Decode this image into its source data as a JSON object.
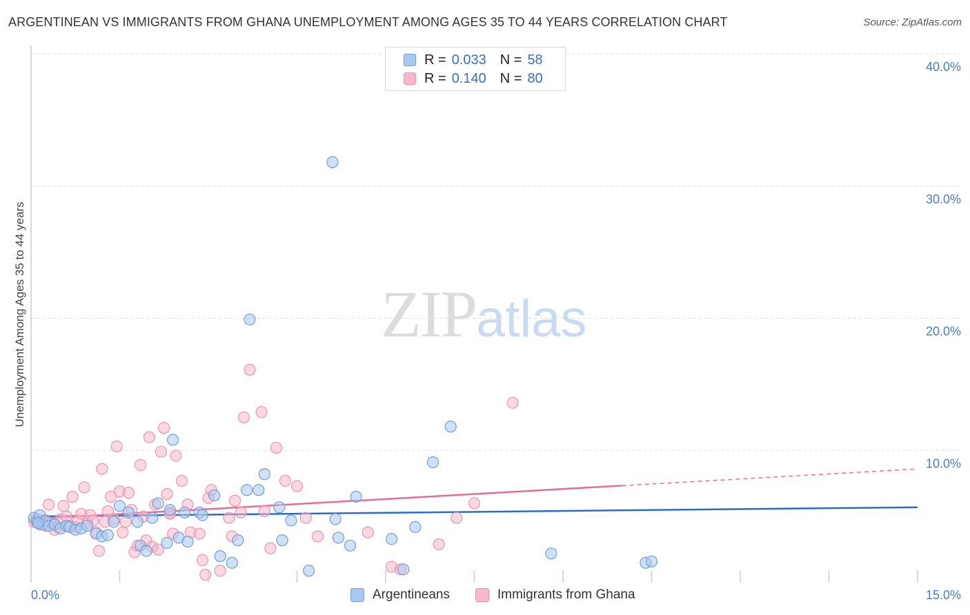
{
  "title": "ARGENTINEAN VS IMMIGRANTS FROM GHANA UNEMPLOYMENT AMONG AGES 35 TO 44 YEARS CORRELATION CHART",
  "source": "Source: ZipAtlas.com",
  "watermark": {
    "zip": "ZIP",
    "atlas": "atlas"
  },
  "legend": {
    "rows": [
      {
        "r_label": "R =",
        "r_value": "0.033",
        "n_label": "N =",
        "n_value": "58"
      },
      {
        "r_label": "R =",
        "r_value": "0.140",
        "n_label": "N =",
        "n_value": "80"
      }
    ]
  },
  "bottom_legend": [
    "Argentineans",
    "Immigrants from Ghana"
  ],
  "colors": {
    "argentineans_fill": "#a9c8f0",
    "argentineans_stroke": "#6f9fd8",
    "argentineans_line": "#2b6cc4",
    "ghana_fill": "#f7b8cb",
    "ghana_stroke": "#ee93ae",
    "ghana_line": "#e66c96",
    "tick_text": "#4a7cc7",
    "grid": "#dddddd"
  },
  "chart_data": {
    "type": "scatter",
    "title": "ARGENTINEAN VS IMMIGRANTS FROM GHANA UNEMPLOYMENT AMONG AGES 35 TO 44 YEARS CORRELATION CHART",
    "xlabel": "",
    "ylabel": "Unemployment Among Ages 35 to 44 years",
    "xlim": [
      0,
      15
    ],
    "ylim": [
      0,
      40
    ],
    "x_tick_labels": [
      "0.0%",
      "15.0%"
    ],
    "y_ticks": [
      10,
      20,
      30,
      40
    ],
    "y_tick_labels": [
      "10.0%",
      "20.0%",
      "30.0%",
      "40.0%"
    ],
    "grid": true,
    "series": [
      {
        "name": "Argentineans",
        "r": 0.033,
        "n": 58,
        "trend": {
          "x": [
            0,
            15
          ],
          "y": [
            5.0,
            5.7
          ],
          "dashed_from": null
        },
        "points": [
          [
            0.05,
            4.9
          ],
          [
            0.1,
            4.6
          ],
          [
            0.15,
            5.1
          ],
          [
            0.2,
            4.4
          ],
          [
            0.25,
            4.7
          ],
          [
            0.3,
            4.3
          ],
          [
            0.4,
            4.4
          ],
          [
            0.5,
            4.1
          ],
          [
            0.6,
            4.3
          ],
          [
            0.65,
            4.2
          ],
          [
            0.75,
            4.0
          ],
          [
            0.85,
            4.1
          ],
          [
            0.95,
            4.3
          ],
          [
            1.1,
            3.7
          ],
          [
            1.2,
            3.5
          ],
          [
            1.3,
            3.6
          ],
          [
            1.4,
            4.6
          ],
          [
            1.5,
            5.8
          ],
          [
            1.65,
            5.3
          ],
          [
            1.8,
            4.6
          ],
          [
            1.85,
            2.8
          ],
          [
            1.95,
            2.4
          ],
          [
            2.05,
            4.9
          ],
          [
            2.15,
            6.0
          ],
          [
            2.3,
            3.0
          ],
          [
            2.35,
            5.5
          ],
          [
            2.4,
            10.8
          ],
          [
            2.5,
            3.4
          ],
          [
            2.6,
            5.3
          ],
          [
            2.65,
            3.1
          ],
          [
            2.85,
            5.3
          ],
          [
            2.9,
            5.1
          ],
          [
            3.1,
            6.6
          ],
          [
            3.2,
            2.0
          ],
          [
            3.4,
            1.5
          ],
          [
            3.5,
            3.2
          ],
          [
            3.65,
            7.0
          ],
          [
            3.7,
            19.9
          ],
          [
            3.85,
            7.0
          ],
          [
            3.95,
            8.2
          ],
          [
            4.2,
            5.7
          ],
          [
            4.25,
            3.2
          ],
          [
            4.4,
            4.7
          ],
          [
            4.7,
            0.9
          ],
          [
            5.1,
            31.8
          ],
          [
            5.15,
            4.8
          ],
          [
            5.2,
            3.4
          ],
          [
            5.4,
            2.8
          ],
          [
            5.5,
            6.5
          ],
          [
            6.1,
            3.3
          ],
          [
            6.3,
            1.0
          ],
          [
            6.5,
            4.2
          ],
          [
            6.8,
            9.1
          ],
          [
            7.1,
            11.8
          ],
          [
            8.8,
            2.2
          ],
          [
            10.4,
            1.5
          ],
          [
            10.5,
            1.6
          ],
          [
            0.12,
            4.5
          ]
        ]
      },
      {
        "name": "Immigrants from Ghana",
        "r": 0.14,
        "n": 80,
        "trend": {
          "x": [
            0,
            15
          ],
          "y": [
            4.8,
            8.6
          ],
          "dashed_from": 10.0
        },
        "points": [
          [
            0.05,
            4.6
          ],
          [
            0.1,
            4.8
          ],
          [
            0.15,
            4.4
          ],
          [
            0.2,
            4.7
          ],
          [
            0.25,
            4.3
          ],
          [
            0.3,
            5.9
          ],
          [
            0.35,
            4.5
          ],
          [
            0.4,
            4.0
          ],
          [
            0.45,
            4.2
          ],
          [
            0.5,
            4.8
          ],
          [
            0.55,
            5.8
          ],
          [
            0.6,
            5.0
          ],
          [
            0.65,
            4.3
          ],
          [
            0.7,
            6.5
          ],
          [
            0.75,
            4.2
          ],
          [
            0.8,
            4.7
          ],
          [
            0.85,
            5.2
          ],
          [
            0.9,
            7.2
          ],
          [
            0.95,
            4.5
          ],
          [
            1.0,
            5.1
          ],
          [
            1.05,
            4.7
          ],
          [
            1.1,
            3.8
          ],
          [
            1.15,
            2.4
          ],
          [
            1.2,
            8.6
          ],
          [
            1.25,
            4.6
          ],
          [
            1.3,
            5.4
          ],
          [
            1.35,
            6.5
          ],
          [
            1.4,
            4.8
          ],
          [
            1.45,
            10.3
          ],
          [
            1.5,
            6.9
          ],
          [
            1.55,
            3.8
          ],
          [
            1.6,
            4.6
          ],
          [
            1.65,
            6.8
          ],
          [
            1.7,
            5.5
          ],
          [
            1.75,
            2.3
          ],
          [
            1.8,
            2.8
          ],
          [
            1.85,
            8.9
          ],
          [
            1.9,
            5.0
          ],
          [
            1.95,
            3.2
          ],
          [
            2.0,
            11.0
          ],
          [
            2.05,
            2.7
          ],
          [
            2.1,
            5.9
          ],
          [
            2.15,
            2.5
          ],
          [
            2.2,
            9.9
          ],
          [
            2.25,
            11.7
          ],
          [
            2.3,
            6.7
          ],
          [
            2.35,
            5.3
          ],
          [
            2.4,
            3.7
          ],
          [
            2.45,
            9.6
          ],
          [
            2.55,
            7.7
          ],
          [
            2.65,
            5.9
          ],
          [
            2.7,
            3.8
          ],
          [
            2.85,
            3.7
          ],
          [
            2.9,
            1.7
          ],
          [
            2.95,
            0.6
          ],
          [
            3.0,
            6.4
          ],
          [
            3.05,
            7.0
          ],
          [
            3.2,
            0.9
          ],
          [
            3.35,
            4.9
          ],
          [
            3.45,
            6.2
          ],
          [
            3.55,
            5.3
          ],
          [
            3.6,
            12.5
          ],
          [
            3.7,
            16.1
          ],
          [
            3.9,
            12.9
          ],
          [
            3.95,
            5.4
          ],
          [
            4.05,
            2.6
          ],
          [
            4.15,
            10.2
          ],
          [
            4.3,
            7.7
          ],
          [
            4.5,
            7.3
          ],
          [
            4.65,
            4.9
          ],
          [
            4.85,
            3.5
          ],
          [
            5.7,
            3.8
          ],
          [
            6.1,
            1.2
          ],
          [
            6.25,
            1.0
          ],
          [
            6.9,
            2.9
          ],
          [
            7.2,
            4.9
          ],
          [
            7.5,
            6.0
          ],
          [
            8.15,
            13.6
          ],
          [
            3.4,
            3.5
          ],
          [
            2.35,
            5.2
          ]
        ]
      }
    ]
  }
}
